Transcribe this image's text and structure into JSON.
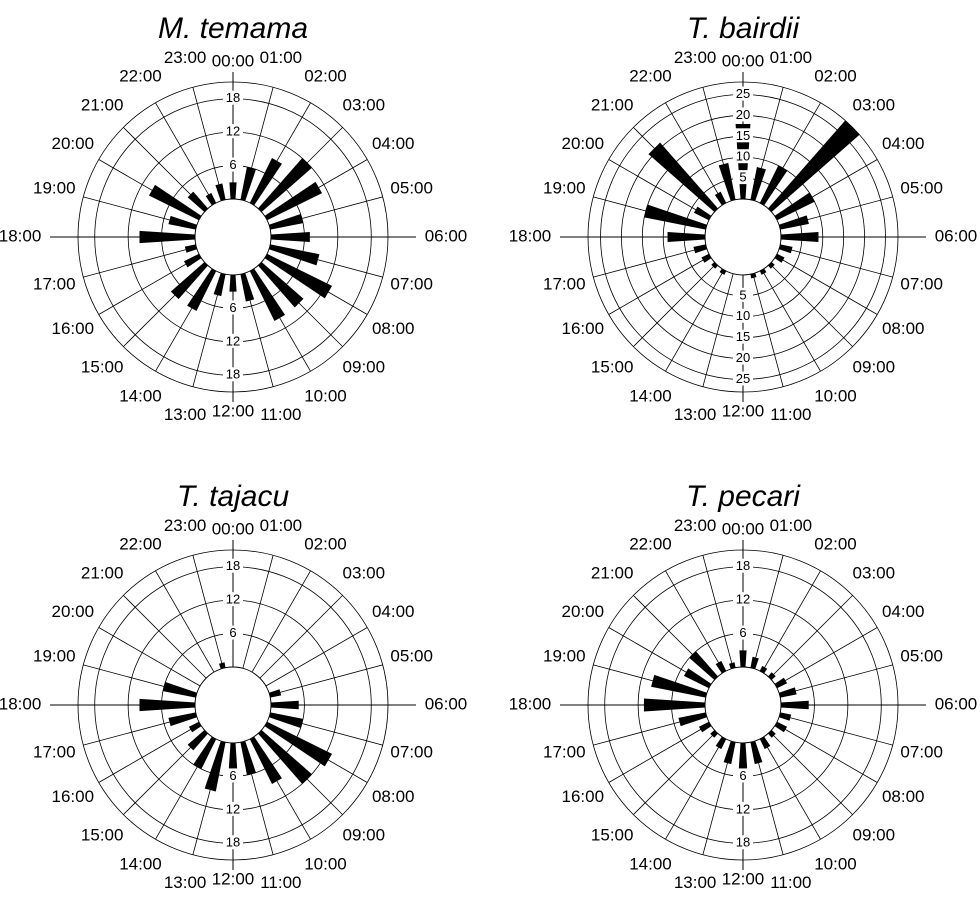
{
  "chart_data": [
    {
      "type": "polar-bar",
      "title": "M. temama",
      "hour_labels": [
        "00:00",
        "01:00",
        "02:00",
        "03:00",
        "04:00",
        "05:00",
        "06:00",
        "07:00",
        "08:00",
        "09:00",
        "10:00",
        "11:00",
        "12:00",
        "13:00",
        "14:00",
        "15:00",
        "16:00",
        "17:00",
        "18:00",
        "19:00",
        "20:00",
        "21:00",
        "22:00",
        "23:00"
      ],
      "radial_ticks": [
        "6",
        "12",
        "18"
      ],
      "radial_max": 21,
      "values": [
        3,
        6,
        9,
        12,
        11,
        6,
        7,
        9,
        13,
        10,
        10,
        5,
        3,
        4,
        8,
        8,
        3,
        2,
        10,
        5,
        10,
        4,
        2,
        3
      ]
    },
    {
      "type": "polar-bar",
      "title": "T. bairdii",
      "hour_labels": [
        "00:00",
        "01:00",
        "02:00",
        "03:00",
        "04:00",
        "05:00",
        "06:00",
        "07:00",
        "08:00",
        "09:00",
        "10:00",
        "11:00",
        "12:00",
        "13:00",
        "14:00",
        "15:00",
        "16:00",
        "17:00",
        "18:00",
        "19:00",
        "20:00",
        "21:00",
        "22:00",
        "23:00"
      ],
      "radial_ticks": [
        "5",
        "10",
        "15",
        "20",
        "25"
      ],
      "radial_max": 28,
      "values": [
        18,
        8,
        10,
        28,
        10,
        7,
        9,
        3,
        2,
        1,
        1,
        1,
        0,
        0,
        1,
        1,
        2,
        3,
        9,
        15,
        4,
        21,
        3,
        9
      ]
    },
    {
      "type": "polar-bar",
      "title": "T. tajacu",
      "hour_labels": [
        "00:00",
        "01:00",
        "02:00",
        "03:00",
        "04:00",
        "05:00",
        "06:00",
        "07:00",
        "08:00",
        "09:00",
        "10:00",
        "11:00",
        "12:00",
        "13:00",
        "14:00",
        "15:00",
        "16:00",
        "17:00",
        "18:00",
        "19:00",
        "20:00",
        "21:00",
        "22:00",
        "23:00"
      ],
      "radial_ticks": [
        "6",
        "12",
        "18"
      ],
      "radial_max": 21,
      "values": [
        0,
        0,
        0,
        0,
        0,
        2,
        5,
        6,
        13,
        12,
        9,
        6,
        6,
        9,
        6,
        4,
        2,
        5,
        10,
        6,
        0,
        0,
        0,
        1
      ]
    },
    {
      "type": "polar-bar",
      "title": "T. pecari",
      "hour_labels": [
        "00:00",
        "01:00",
        "02:00",
        "03:00",
        "04:00",
        "05:00",
        "06:00",
        "07:00",
        "08:00",
        "09:00",
        "10:00",
        "11:00",
        "12:00",
        "13:00",
        "14:00",
        "15:00",
        "16:00",
        "17:00",
        "18:00",
        "19:00",
        "20:00",
        "21:00",
        "22:00",
        "23:00"
      ],
      "radial_ticks": [
        "6",
        "12",
        "18"
      ],
      "radial_max": 21,
      "values": [
        3,
        2,
        1,
        1,
        2,
        3,
        5,
        2,
        2,
        1,
        2,
        4,
        6,
        4,
        2,
        1,
        2,
        5,
        11,
        10,
        5,
        6,
        2,
        1
      ]
    }
  ]
}
